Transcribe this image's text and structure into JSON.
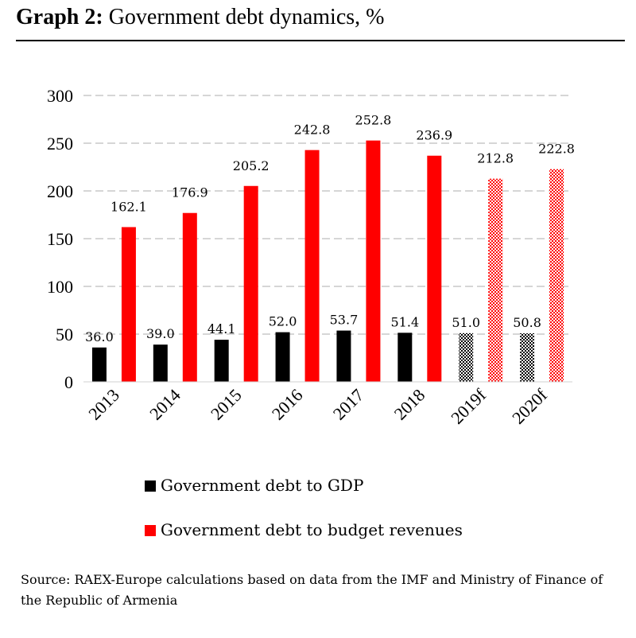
{
  "header": {
    "title_bold": "Graph 2:",
    "title_rest": "Government debt dynamics, %"
  },
  "chart_data": {
    "type": "bar",
    "categories": [
      "2013",
      "2014",
      "2015",
      "2016",
      "2017",
      "2018",
      "2019f",
      "2020f"
    ],
    "forecast": [
      false,
      false,
      false,
      false,
      false,
      false,
      true,
      true
    ],
    "series": [
      {
        "name": "Government debt to GDP",
        "color": "#000000",
        "values": [
          36.0,
          39.0,
          44.1,
          52.0,
          53.7,
          51.4,
          51.0,
          50.8
        ]
      },
      {
        "name": "Government debt to budget revenues",
        "color": "#ff0000",
        "values": [
          162.1,
          176.9,
          205.2,
          242.8,
          252.8,
          236.9,
          212.8,
          222.8
        ]
      }
    ],
    "ylim": [
      0,
      300
    ],
    "yticks": [
      0,
      50,
      100,
      150,
      200,
      250,
      300
    ],
    "grid": true,
    "legend_position": "bottom"
  },
  "source": "Source: RAEX-Europe calculations based on data from the IMF and Ministry of Finance of the Republic of Armenia"
}
